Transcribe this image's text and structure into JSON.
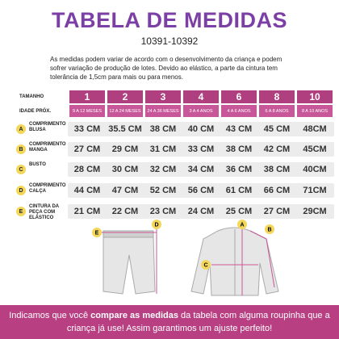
{
  "header": {
    "title": "TABELA DE MEDIDAS",
    "code": "10391-10392"
  },
  "note": "As medidas podem variar de acordo com o desenvolvimento da criança e podem sofrer variação de produção de lotes. Devido ao elástico, a parte da cintura tem tolerância de 1,5cm para mais ou para menos.",
  "table": {
    "size_label": "TAMANHO",
    "sizes": [
      "1",
      "2",
      "3",
      "4",
      "6",
      "8",
      "10"
    ],
    "age_label": "IDADE PRÓX.",
    "ages": [
      "9 A 12 MESES",
      "12 A 24 MESES",
      "24 A 36 MESES",
      "3 A 4 ANOS",
      "4 A 6 ANOS",
      "6 A 8 ANOS",
      "8 A 10 ANOS"
    ],
    "rows": [
      {
        "letter": "A",
        "label": "COMPRIMENTO BLUSA",
        "values": [
          "33 CM",
          "35.5 CM",
          "38 CM",
          "40 CM",
          "43 CM",
          "45 CM",
          "48CM"
        ]
      },
      {
        "letter": "B",
        "label": "COMPRIMENTO MANGA",
        "values": [
          "27 CM",
          "29 CM",
          "31 CM",
          "33 CM",
          "38 CM",
          "42 CM",
          "45CM"
        ]
      },
      {
        "letter": "C",
        "label": "BUSTO",
        "values": [
          "28 CM",
          "30 CM",
          "32 CM",
          "34 CM",
          "36 CM",
          "38 CM",
          "40CM"
        ]
      },
      {
        "letter": "D",
        "label": "COMPRIMENTO CALÇA",
        "values": [
          "44 CM",
          "47 CM",
          "52 CM",
          "56 CM",
          "61 CM",
          "66 CM",
          "71CM"
        ]
      },
      {
        "letter": "E",
        "label": "CINTURA DA PEÇA COM ELÁSTICO",
        "values": [
          "21 CM",
          "22 CM",
          "23 CM",
          "24 CM",
          "25 CM",
          "27 CM",
          "29CM"
        ]
      }
    ]
  },
  "footer": {
    "text_start": "Indicamos que você ",
    "text_bold": "compare as medidas",
    "text_end": " da tabela com alguma roupinha que a criança já use! Assim garantimos um ajuste perfeito!"
  }
}
